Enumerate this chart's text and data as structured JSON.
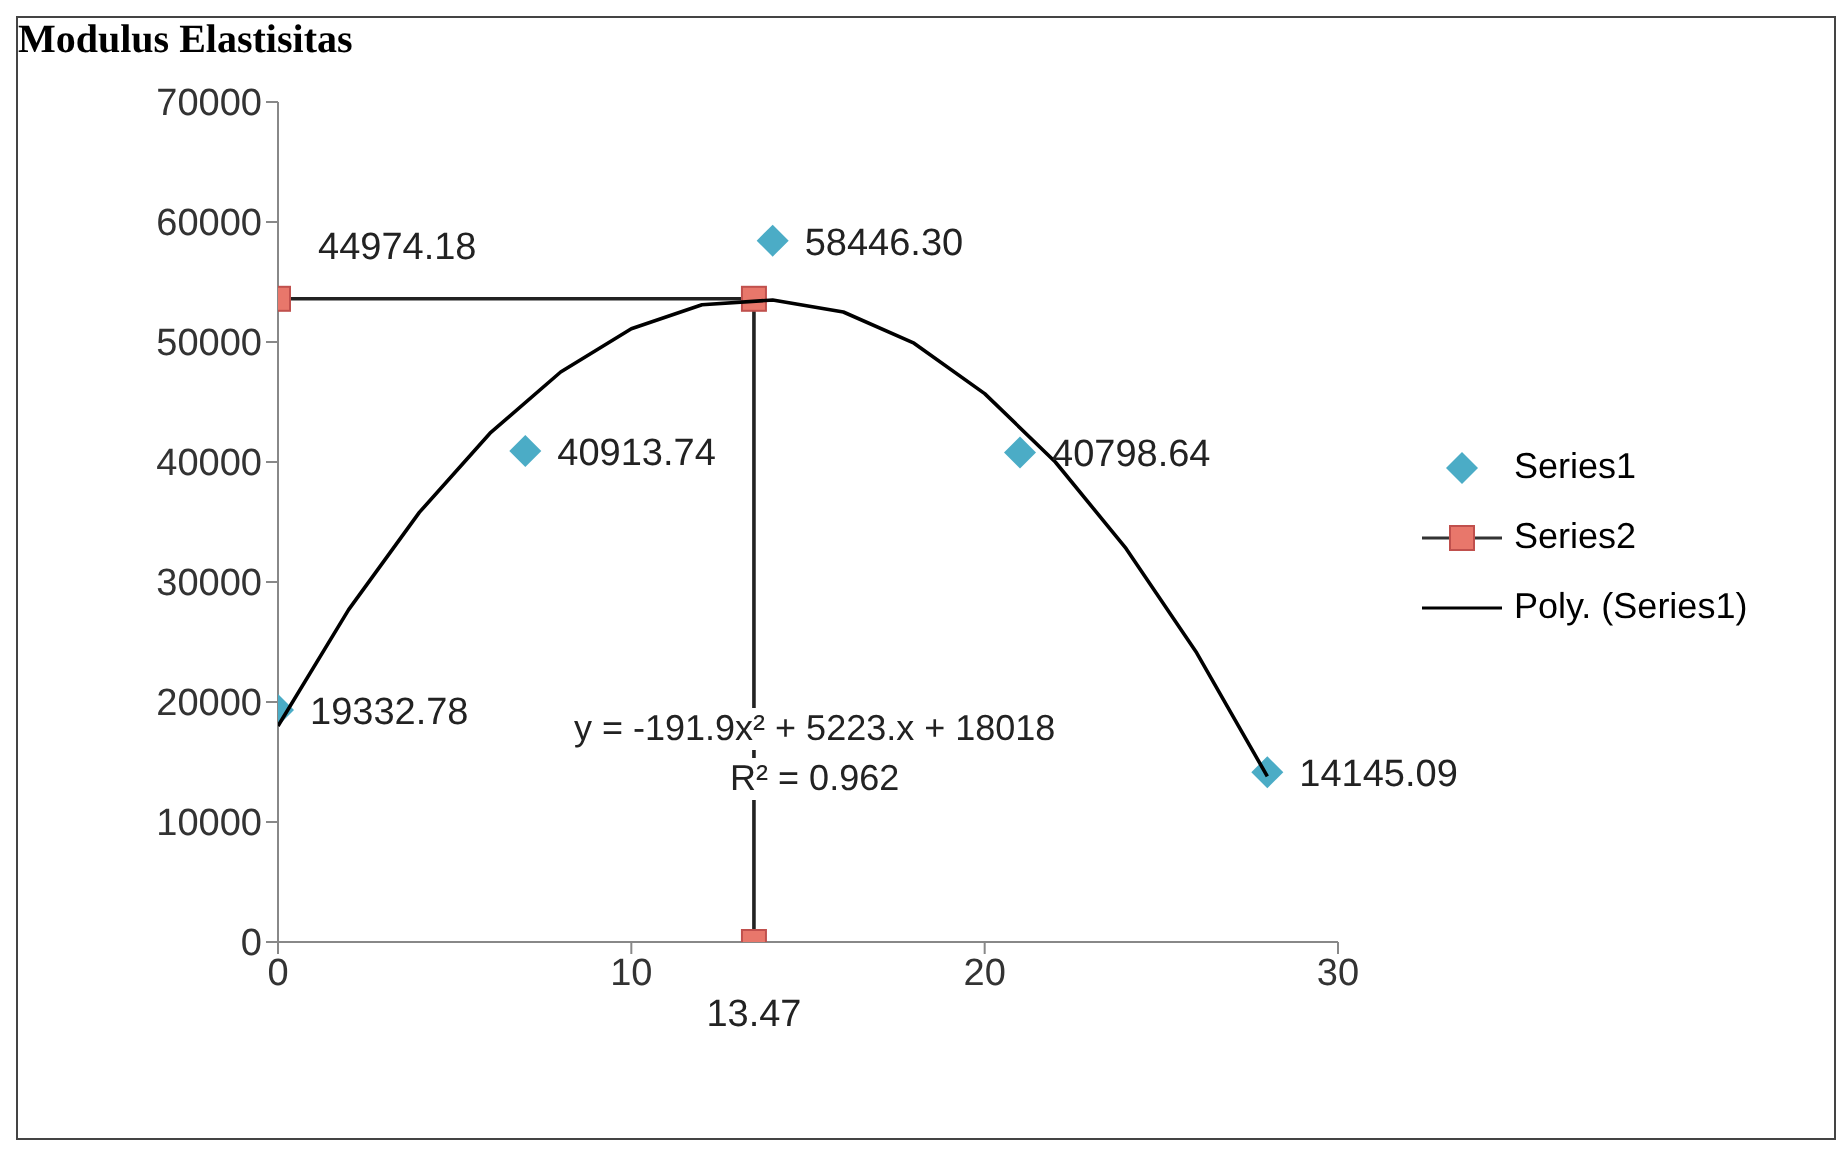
{
  "chart_data": {
    "type": "scatter",
    "title": "Modulus Elastisitas",
    "xlim": [
      0,
      30
    ],
    "xticks": [
      0,
      10,
      20,
      30
    ],
    "ylim": [
      0,
      70000
    ],
    "yticks": [
      0,
      10000,
      20000,
      30000,
      40000,
      50000,
      60000,
      70000
    ],
    "grid": false,
    "legend": "right",
    "series": [
      {
        "name": "Series1",
        "marker": "diamond",
        "color": "#4bacc6",
        "x": [
          0,
          7,
          14,
          21,
          28
        ],
        "values": [
          19332.78,
          40913.74,
          58446.3,
          40798.64,
          14145.09
        ],
        "value_labels": [
          "19332.78",
          "40913.74",
          "58446.30",
          "40798.64",
          "14145.09"
        ]
      },
      {
        "name": "Series2",
        "type": "line",
        "marker": "square",
        "color": "#e8776b",
        "x": [
          0,
          13.47,
          13.47
        ],
        "values": [
          53600,
          53600,
          0
        ]
      },
      {
        "name": "Poly. (Series1)",
        "type": "line",
        "marker": "none",
        "color": "#000000",
        "x": [
          0,
          2,
          4,
          6,
          8,
          10,
          12,
          14,
          16,
          18,
          20,
          22,
          24,
          26,
          28
        ],
        "values": [
          18000,
          27700,
          35800,
          42400,
          47500,
          51100,
          53100,
          53500,
          52500,
          49900,
          45700,
          40000,
          32800,
          24100,
          13800
        ]
      }
    ],
    "annotations": [
      {
        "text": "44974.18",
        "x": 0,
        "y": 53600
      },
      {
        "text": "13.47",
        "x": 13.47,
        "y": 0
      },
      "y = -191.9x² + 5223.x + 18018",
      "R² = 0.962"
    ]
  }
}
